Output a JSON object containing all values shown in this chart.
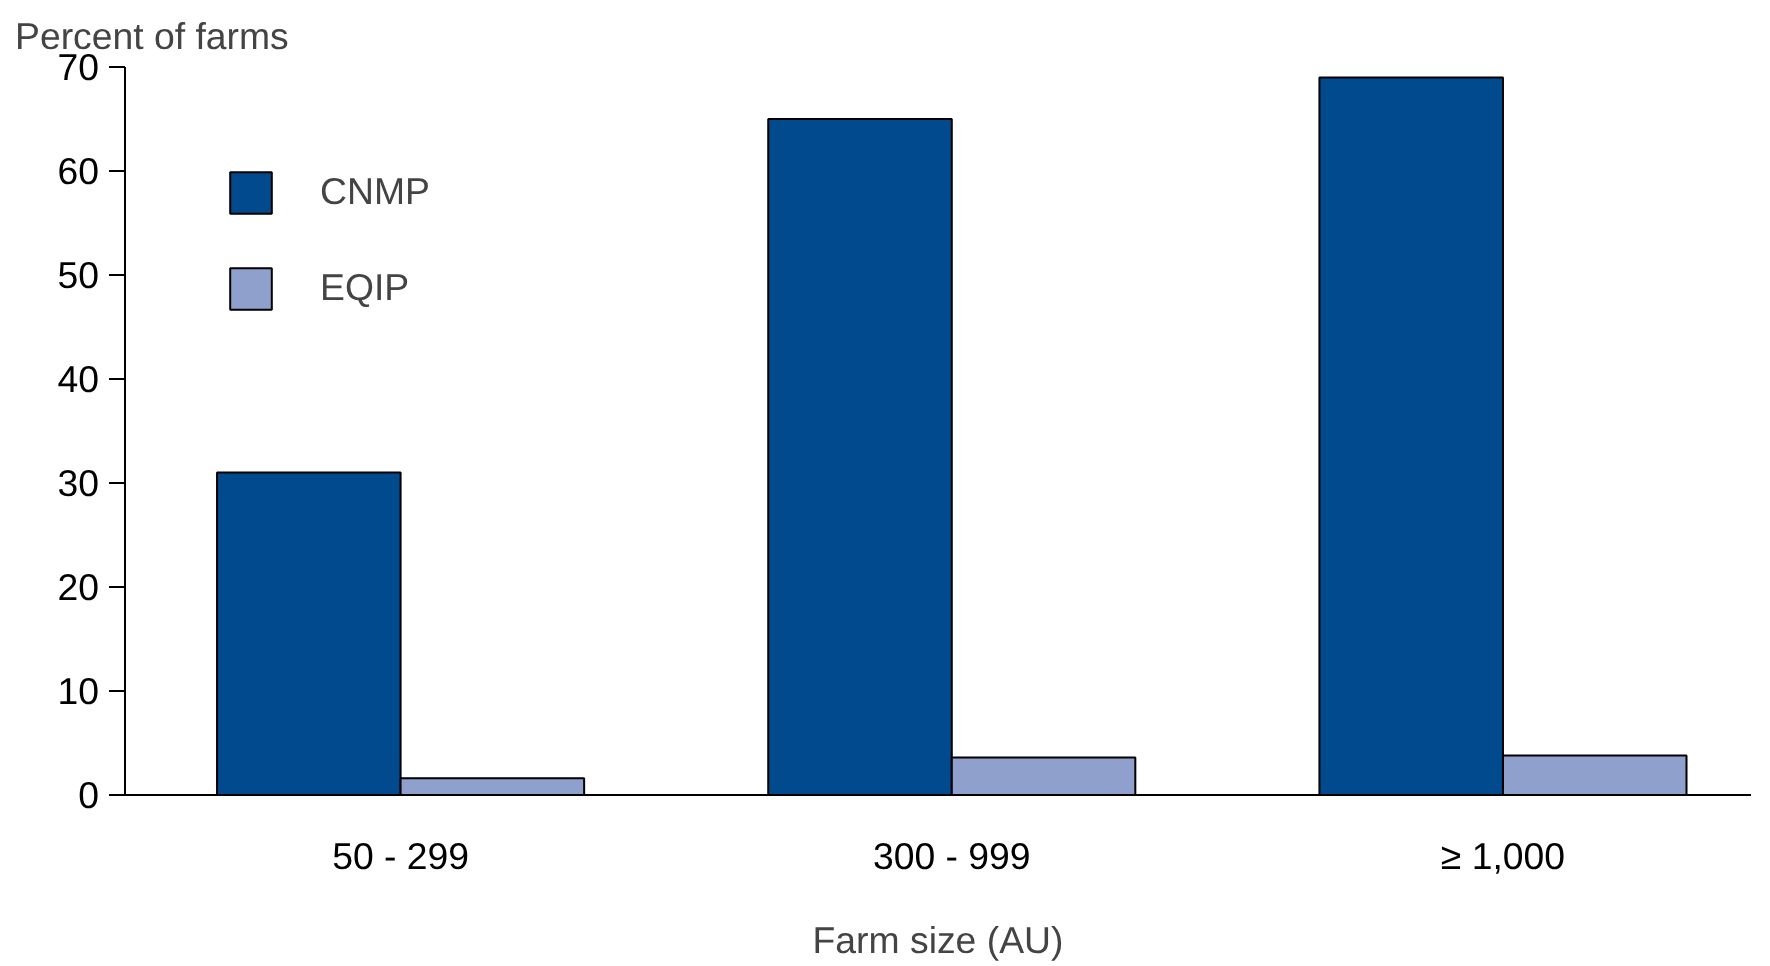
{
  "chart_data": {
    "type": "bar",
    "ylabel": "Percent of farms",
    "xlabel": "Farm size (AU)",
    "categories": [
      "50 - 299",
      "300 - 999",
      "≥ 1,000"
    ],
    "series": [
      {
        "name": "CNMP",
        "color": "#004a8d",
        "values": [
          31,
          65,
          69
        ]
      },
      {
        "name": "EQIP",
        "color": "#8fa0cc",
        "values": [
          1.6,
          3.6,
          3.8
        ]
      }
    ],
    "ylim": [
      0,
      70
    ],
    "yticks": [
      0,
      10,
      20,
      30,
      40,
      50,
      60,
      70
    ],
    "grid": false,
    "legend": "top left"
  }
}
